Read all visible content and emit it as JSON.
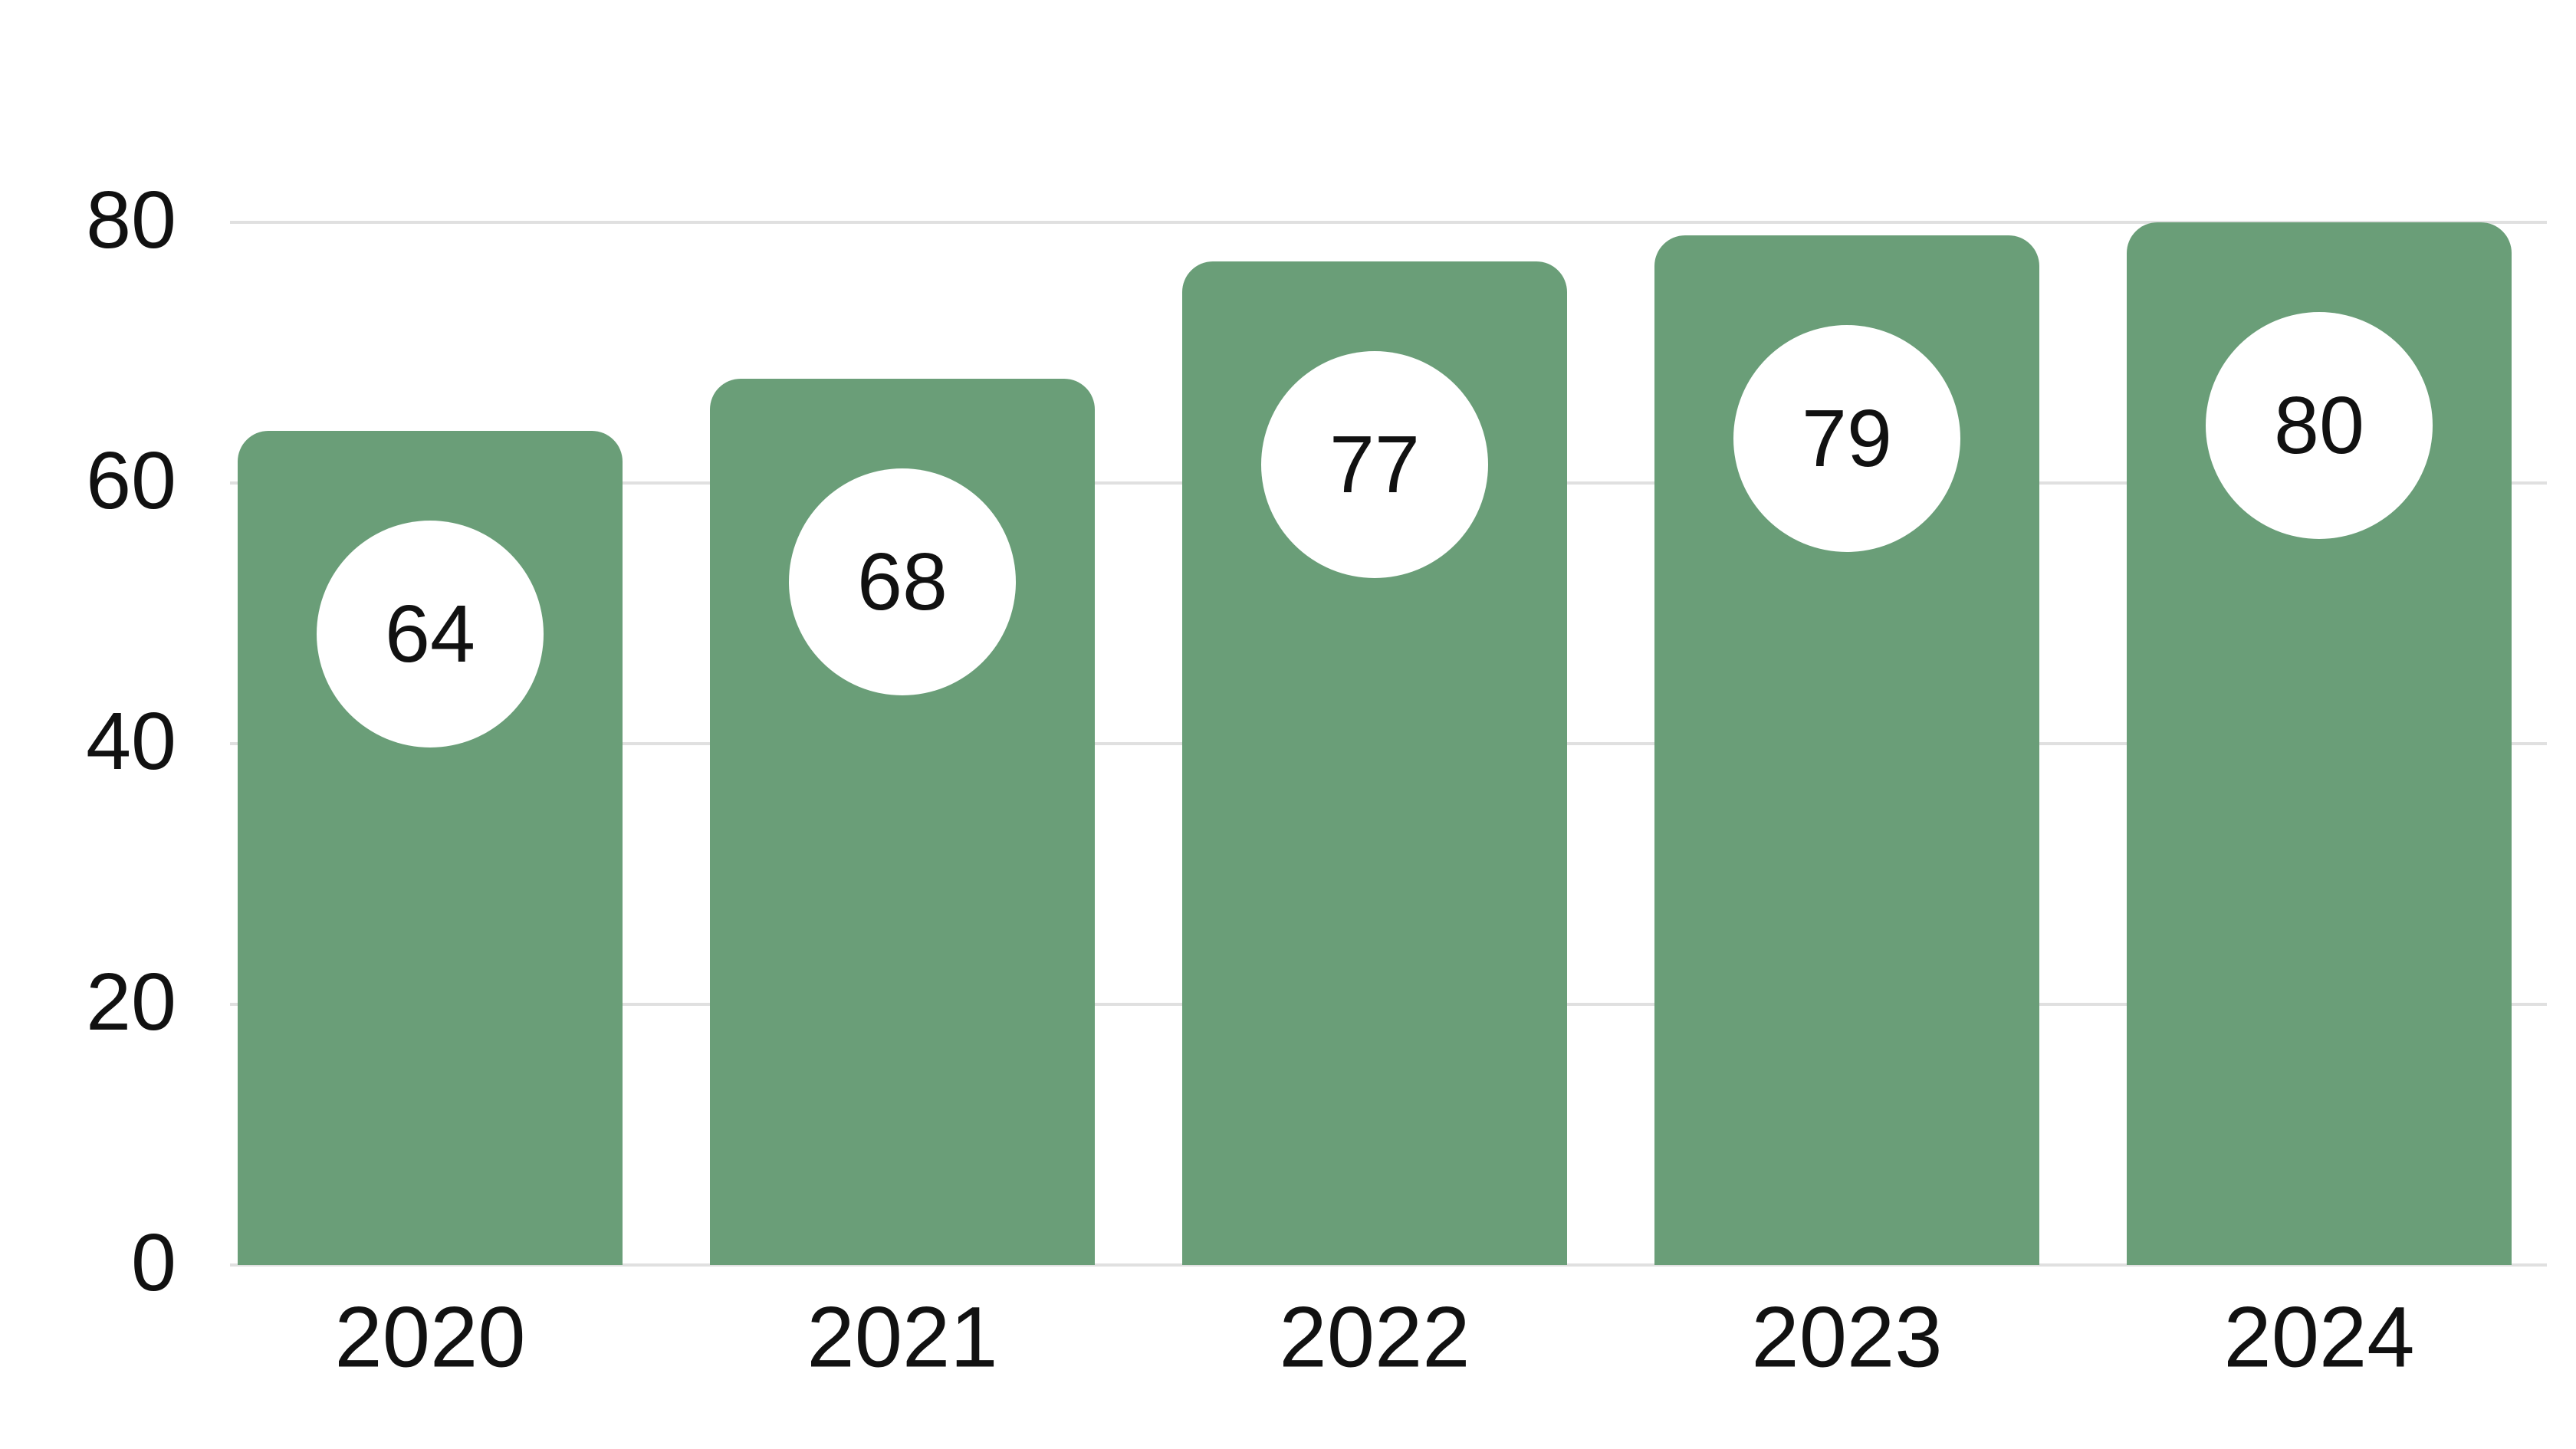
{
  "chart_data": {
    "type": "bar",
    "categories": [
      "2020",
      "2021",
      "2022",
      "2023",
      "2024"
    ],
    "values": [
      64,
      68,
      77,
      79,
      80
    ],
    "bar_labels": [
      "64",
      "68",
      "77",
      "79",
      "80"
    ],
    "y_ticks": [
      "0",
      "20",
      "40",
      "60",
      "80"
    ],
    "ylim": [
      0,
      80
    ],
    "title": "",
    "xlabel": "",
    "ylabel": "",
    "grid": "horizontal",
    "legend": "none",
    "colors": {
      "bar": "#6a9e78",
      "bubble_fill": "#ffffff",
      "gridline": "#e0e0e0",
      "text": "#111111",
      "background": "#ffffff"
    }
  }
}
